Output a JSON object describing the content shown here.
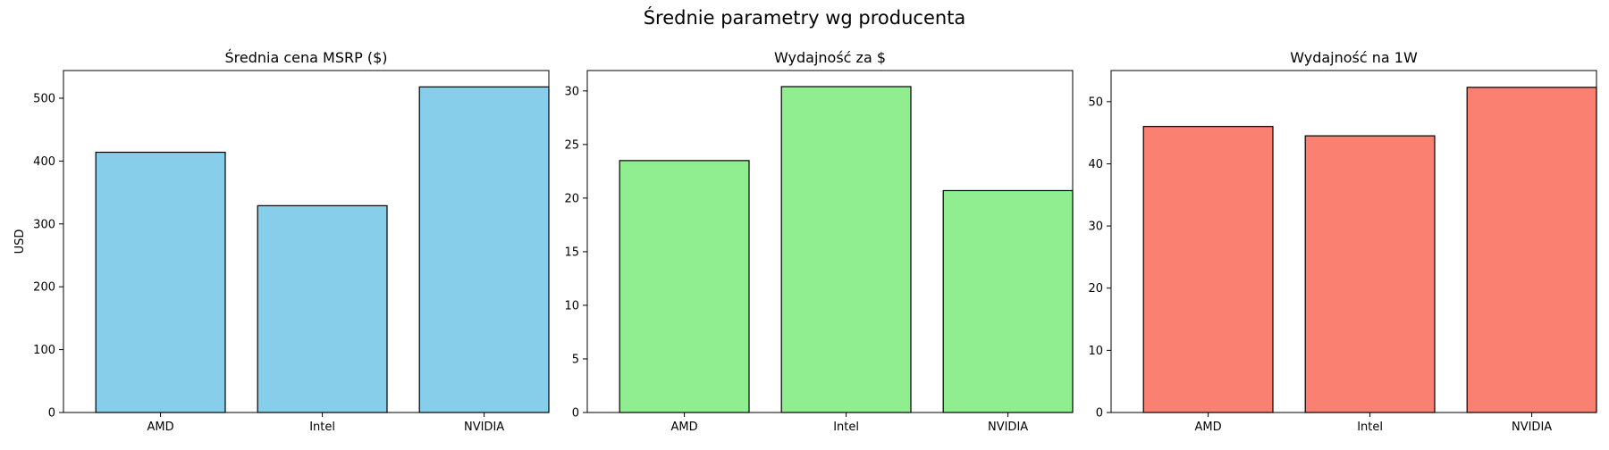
{
  "figure": {
    "suptitle": "Średnie parametry wg producenta"
  },
  "chart_data": [
    {
      "type": "bar",
      "title": "Średnia cena MSRP ($)",
      "xlabel": "",
      "ylabel": "USD",
      "categories": [
        "AMD",
        "Intel",
        "NVIDIA"
      ],
      "values": [
        414,
        329,
        518
      ],
      "ylim": [
        0,
        544
      ],
      "yticks": [
        0,
        100,
        200,
        300,
        400,
        500
      ],
      "color": "#87CEEB",
      "edgecolor": "#000000",
      "grid": false,
      "legend": "none"
    },
    {
      "type": "bar",
      "title": "Wydajność za $",
      "xlabel": "",
      "ylabel": "",
      "categories": [
        "AMD",
        "Intel",
        "NVIDIA"
      ],
      "values": [
        23.5,
        30.4,
        20.7
      ],
      "ylim": [
        0,
        31.9
      ],
      "yticks": [
        0,
        5,
        10,
        15,
        20,
        25,
        30
      ],
      "color": "#90EE90",
      "edgecolor": "#000000",
      "grid": false,
      "legend": "none"
    },
    {
      "type": "bar",
      "title": "Wydajność na 1W",
      "xlabel": "",
      "ylabel": "",
      "categories": [
        "AMD",
        "Intel",
        "NVIDIA"
      ],
      "values": [
        46.0,
        44.5,
        52.3
      ],
      "ylim": [
        0,
        55
      ],
      "yticks": [
        0,
        10,
        20,
        30,
        40,
        50
      ],
      "color": "#FA8072",
      "edgecolor": "#000000",
      "grid": false,
      "legend": "none"
    }
  ]
}
